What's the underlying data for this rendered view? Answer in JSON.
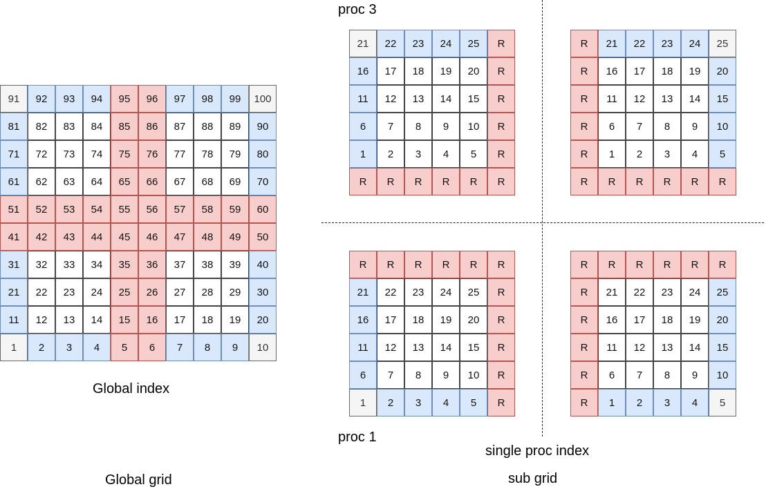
{
  "labels": {
    "proc3": "proc 3",
    "proc1": "proc 1",
    "global_index": "Global index",
    "global_grid": "Global grid",
    "single_proc_index": "single proc index",
    "sub_grid": "sub grid"
  },
  "colors": {
    "w": "#ffffff",
    "b": "#dae8fc",
    "r": "#f8cecc",
    "g": "#f5f5f5"
  },
  "global_grid": {
    "rows": [
      [
        [
          "91",
          "g"
        ],
        [
          "92",
          "b"
        ],
        [
          "93",
          "b"
        ],
        [
          "94",
          "b"
        ],
        [
          "95",
          "r"
        ],
        [
          "96",
          "r"
        ],
        [
          "97",
          "b"
        ],
        [
          "98",
          "b"
        ],
        [
          "99",
          "b"
        ],
        [
          "100",
          "g"
        ]
      ],
      [
        [
          "81",
          "b"
        ],
        [
          "82",
          "w"
        ],
        [
          "83",
          "w"
        ],
        [
          "84",
          "w"
        ],
        [
          "85",
          "r"
        ],
        [
          "86",
          "r"
        ],
        [
          "87",
          "w"
        ],
        [
          "88",
          "w"
        ],
        [
          "89",
          "w"
        ],
        [
          "90",
          "b"
        ]
      ],
      [
        [
          "71",
          "b"
        ],
        [
          "72",
          "w"
        ],
        [
          "73",
          "w"
        ],
        [
          "74",
          "w"
        ],
        [
          "75",
          "r"
        ],
        [
          "76",
          "r"
        ],
        [
          "77",
          "w"
        ],
        [
          "78",
          "w"
        ],
        [
          "79",
          "w"
        ],
        [
          "80",
          "b"
        ]
      ],
      [
        [
          "61",
          "b"
        ],
        [
          "62",
          "w"
        ],
        [
          "63",
          "w"
        ],
        [
          "64",
          "w"
        ],
        [
          "65",
          "r"
        ],
        [
          "66",
          "r"
        ],
        [
          "67",
          "w"
        ],
        [
          "68",
          "w"
        ],
        [
          "69",
          "w"
        ],
        [
          "70",
          "b"
        ]
      ],
      [
        [
          "51",
          "r"
        ],
        [
          "52",
          "r"
        ],
        [
          "53",
          "r"
        ],
        [
          "54",
          "r"
        ],
        [
          "55",
          "r"
        ],
        [
          "56",
          "r"
        ],
        [
          "57",
          "r"
        ],
        [
          "58",
          "r"
        ],
        [
          "59",
          "r"
        ],
        [
          "60",
          "r"
        ]
      ],
      [
        [
          "41",
          "r"
        ],
        [
          "42",
          "r"
        ],
        [
          "43",
          "r"
        ],
        [
          "44",
          "r"
        ],
        [
          "45",
          "r"
        ],
        [
          "46",
          "r"
        ],
        [
          "47",
          "r"
        ],
        [
          "48",
          "r"
        ],
        [
          "49",
          "r"
        ],
        [
          "50",
          "r"
        ]
      ],
      [
        [
          "31",
          "b"
        ],
        [
          "32",
          "w"
        ],
        [
          "33",
          "w"
        ],
        [
          "34",
          "w"
        ],
        [
          "35",
          "r"
        ],
        [
          "36",
          "r"
        ],
        [
          "37",
          "w"
        ],
        [
          "38",
          "w"
        ],
        [
          "39",
          "w"
        ],
        [
          "40",
          "b"
        ]
      ],
      [
        [
          "21",
          "b"
        ],
        [
          "22",
          "w"
        ],
        [
          "23",
          "w"
        ],
        [
          "24",
          "w"
        ],
        [
          "25",
          "r"
        ],
        [
          "26",
          "r"
        ],
        [
          "27",
          "w"
        ],
        [
          "28",
          "w"
        ],
        [
          "29",
          "w"
        ],
        [
          "30",
          "b"
        ]
      ],
      [
        [
          "11",
          "b"
        ],
        [
          "12",
          "w"
        ],
        [
          "13",
          "w"
        ],
        [
          "14",
          "w"
        ],
        [
          "15",
          "r"
        ],
        [
          "16",
          "r"
        ],
        [
          "17",
          "w"
        ],
        [
          "18",
          "w"
        ],
        [
          "19",
          "w"
        ],
        [
          "20",
          "b"
        ]
      ],
      [
        [
          "1",
          "g"
        ],
        [
          "2",
          "b"
        ],
        [
          "3",
          "b"
        ],
        [
          "4",
          "b"
        ],
        [
          "5",
          "r"
        ],
        [
          "6",
          "r"
        ],
        [
          "7",
          "b"
        ],
        [
          "8",
          "b"
        ],
        [
          "9",
          "b"
        ],
        [
          "10",
          "g"
        ]
      ]
    ]
  },
  "sub_grids": {
    "p3_left": {
      "rows": [
        [
          [
            "21",
            "g"
          ],
          [
            "22",
            "b"
          ],
          [
            "23",
            "b"
          ],
          [
            "24",
            "b"
          ],
          [
            "25",
            "b"
          ],
          [
            "R",
            "r"
          ]
        ],
        [
          [
            "16",
            "b"
          ],
          [
            "17",
            "w"
          ],
          [
            "18",
            "w"
          ],
          [
            "19",
            "w"
          ],
          [
            "20",
            "w"
          ],
          [
            "R",
            "r"
          ]
        ],
        [
          [
            "11",
            "b"
          ],
          [
            "12",
            "w"
          ],
          [
            "13",
            "w"
          ],
          [
            "14",
            "w"
          ],
          [
            "15",
            "w"
          ],
          [
            "R",
            "r"
          ]
        ],
        [
          [
            "6",
            "b"
          ],
          [
            "7",
            "w"
          ],
          [
            "8",
            "w"
          ],
          [
            "9",
            "w"
          ],
          [
            "10",
            "w"
          ],
          [
            "R",
            "r"
          ]
        ],
        [
          [
            "1",
            "b"
          ],
          [
            "2",
            "w"
          ],
          [
            "3",
            "w"
          ],
          [
            "4",
            "w"
          ],
          [
            "5",
            "w"
          ],
          [
            "R",
            "r"
          ]
        ],
        [
          [
            "R",
            "r"
          ],
          [
            "R",
            "r"
          ],
          [
            "R",
            "r"
          ],
          [
            "R",
            "r"
          ],
          [
            "R",
            "r"
          ],
          [
            "R",
            "r"
          ]
        ]
      ]
    },
    "p3_right": {
      "rows": [
        [
          [
            "R",
            "r"
          ],
          [
            "21",
            "b"
          ],
          [
            "22",
            "b"
          ],
          [
            "23",
            "b"
          ],
          [
            "24",
            "b"
          ],
          [
            "25",
            "g"
          ]
        ],
        [
          [
            "R",
            "r"
          ],
          [
            "16",
            "w"
          ],
          [
            "17",
            "w"
          ],
          [
            "18",
            "w"
          ],
          [
            "19",
            "w"
          ],
          [
            "20",
            "b"
          ]
        ],
        [
          [
            "R",
            "r"
          ],
          [
            "11",
            "w"
          ],
          [
            "12",
            "w"
          ],
          [
            "13",
            "w"
          ],
          [
            "14",
            "w"
          ],
          [
            "15",
            "b"
          ]
        ],
        [
          [
            "R",
            "r"
          ],
          [
            "6",
            "w"
          ],
          [
            "7",
            "w"
          ],
          [
            "8",
            "w"
          ],
          [
            "9",
            "w"
          ],
          [
            "10",
            "b"
          ]
        ],
        [
          [
            "R",
            "r"
          ],
          [
            "1",
            "w"
          ],
          [
            "2",
            "w"
          ],
          [
            "3",
            "w"
          ],
          [
            "4",
            "w"
          ],
          [
            "5",
            "b"
          ]
        ],
        [
          [
            "R",
            "r"
          ],
          [
            "R",
            "r"
          ],
          [
            "R",
            "r"
          ],
          [
            "R",
            "r"
          ],
          [
            "R",
            "r"
          ],
          [
            "R",
            "r"
          ]
        ]
      ]
    },
    "p1_left": {
      "rows": [
        [
          [
            "R",
            "r"
          ],
          [
            "R",
            "r"
          ],
          [
            "R",
            "r"
          ],
          [
            "R",
            "r"
          ],
          [
            "R",
            "r"
          ],
          [
            "R",
            "r"
          ]
        ],
        [
          [
            "21",
            "b"
          ],
          [
            "22",
            "w"
          ],
          [
            "23",
            "w"
          ],
          [
            "24",
            "w"
          ],
          [
            "25",
            "w"
          ],
          [
            "R",
            "r"
          ]
        ],
        [
          [
            "16",
            "b"
          ],
          [
            "17",
            "w"
          ],
          [
            "18",
            "w"
          ],
          [
            "19",
            "w"
          ],
          [
            "20",
            "w"
          ],
          [
            "R",
            "r"
          ]
        ],
        [
          [
            "11",
            "b"
          ],
          [
            "12",
            "w"
          ],
          [
            "13",
            "w"
          ],
          [
            "14",
            "w"
          ],
          [
            "15",
            "w"
          ],
          [
            "R",
            "r"
          ]
        ],
        [
          [
            "6",
            "b"
          ],
          [
            "7",
            "w"
          ],
          [
            "8",
            "w"
          ],
          [
            "9",
            "w"
          ],
          [
            "10",
            "w"
          ],
          [
            "R",
            "r"
          ]
        ],
        [
          [
            "1",
            "g"
          ],
          [
            "2",
            "b"
          ],
          [
            "3",
            "b"
          ],
          [
            "4",
            "b"
          ],
          [
            "5",
            "b"
          ],
          [
            "R",
            "r"
          ]
        ]
      ]
    },
    "p1_right": {
      "rows": [
        [
          [
            "R",
            "r"
          ],
          [
            "R",
            "r"
          ],
          [
            "R",
            "r"
          ],
          [
            "R",
            "r"
          ],
          [
            "R",
            "r"
          ],
          [
            "R",
            "r"
          ]
        ],
        [
          [
            "R",
            "r"
          ],
          [
            "21",
            "w"
          ],
          [
            "22",
            "w"
          ],
          [
            "23",
            "w"
          ],
          [
            "24",
            "w"
          ],
          [
            "25",
            "b"
          ]
        ],
        [
          [
            "R",
            "r"
          ],
          [
            "16",
            "w"
          ],
          [
            "17",
            "w"
          ],
          [
            "18",
            "w"
          ],
          [
            "19",
            "w"
          ],
          [
            "20",
            "b"
          ]
        ],
        [
          [
            "R",
            "r"
          ],
          [
            "11",
            "w"
          ],
          [
            "12",
            "w"
          ],
          [
            "13",
            "w"
          ],
          [
            "14",
            "w"
          ],
          [
            "15",
            "b"
          ]
        ],
        [
          [
            "R",
            "r"
          ],
          [
            "6",
            "w"
          ],
          [
            "7",
            "w"
          ],
          [
            "8",
            "w"
          ],
          [
            "9",
            "w"
          ],
          [
            "10",
            "b"
          ]
        ],
        [
          [
            "R",
            "r"
          ],
          [
            "1",
            "b"
          ],
          [
            "2",
            "b"
          ],
          [
            "3",
            "b"
          ],
          [
            "4",
            "b"
          ],
          [
            "5",
            "g"
          ]
        ]
      ]
    }
  }
}
